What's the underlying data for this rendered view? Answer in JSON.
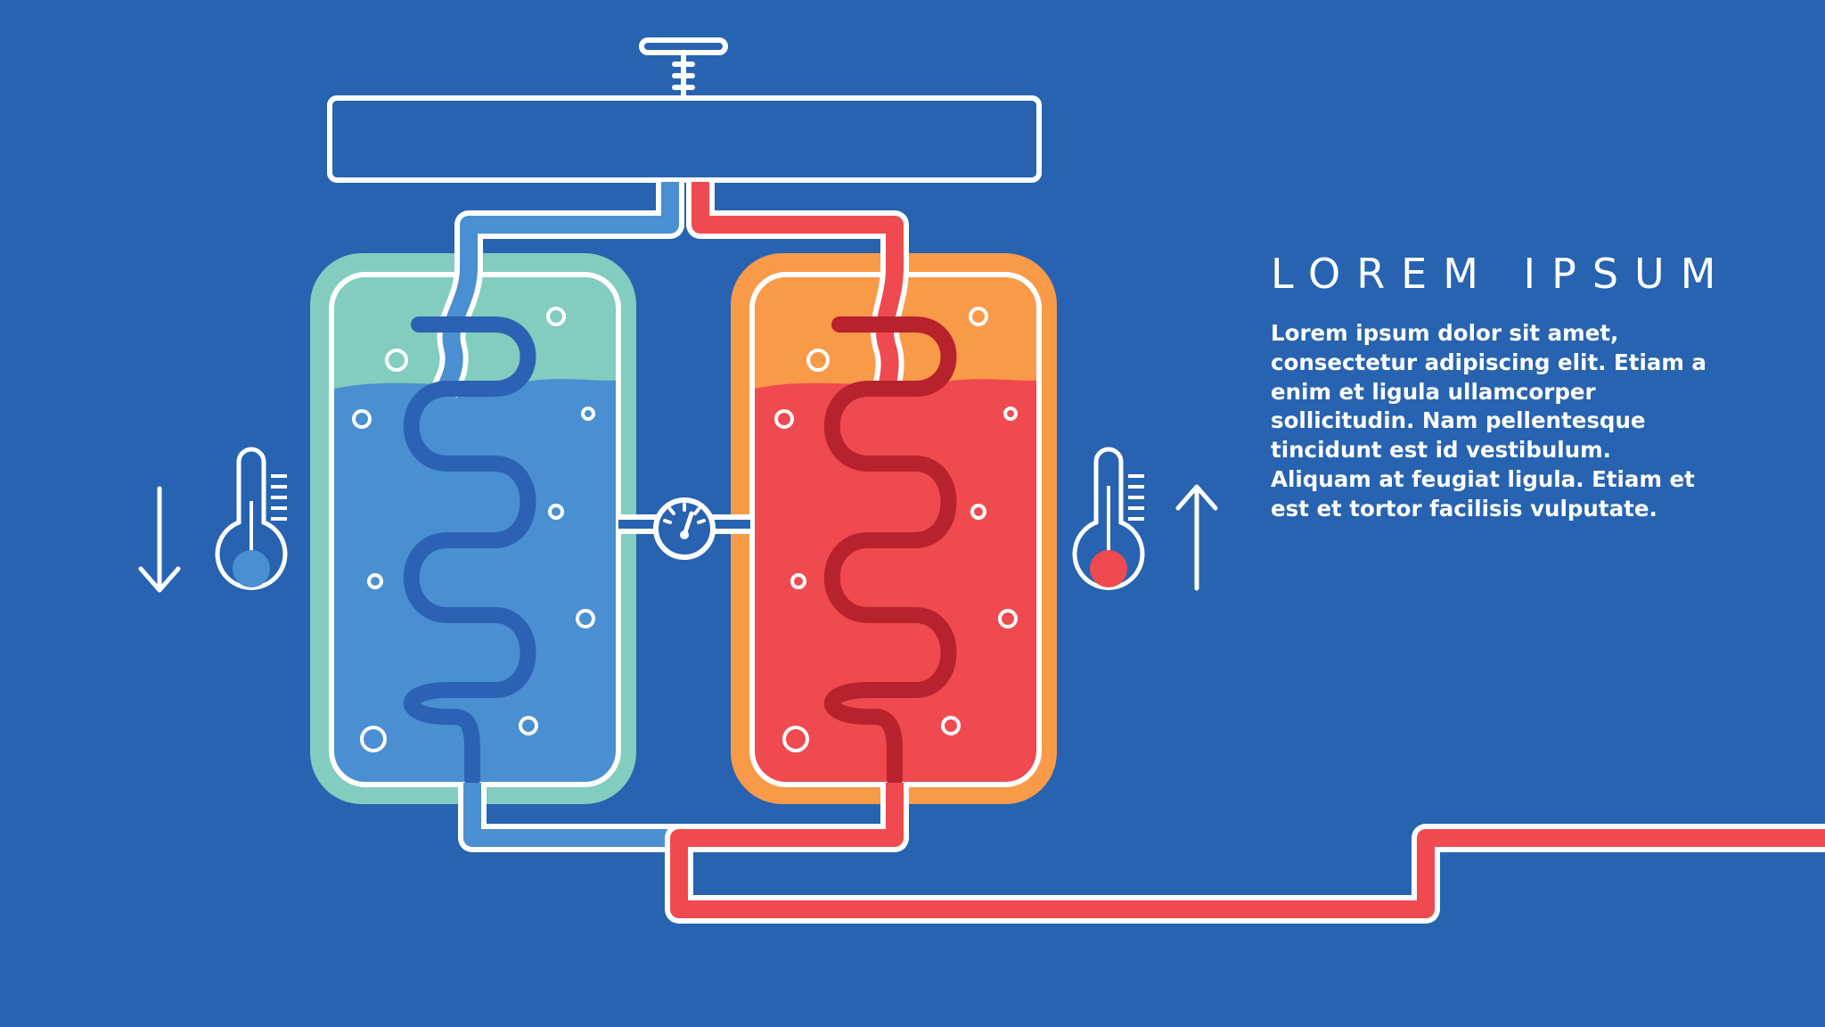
{
  "colors": {
    "background": "#2763b0",
    "outline": "#ffffff",
    "cold_tank_rim": "#82cdbf",
    "cold_liquid": "#4a8fd2",
    "cold_coil": "#2b62b3",
    "cold_pipe": "#4a8fd2",
    "hot_tank_rim": "#f99a49",
    "hot_liquid": "#ef4a4f",
    "hot_coil": "#b8222c",
    "hot_pipe": "#ef4a4f"
  },
  "icons": {
    "valve": "valve-icon",
    "gauge": "pressure-gauge-icon",
    "cold_thermometer": "thermometer-low-icon",
    "hot_thermometer": "thermometer-high-icon",
    "down_arrow": "arrow-down-icon",
    "up_arrow": "arrow-up-icon"
  },
  "text_panel": {
    "heading": "LOREM IPSUM",
    "body": "Lorem ipsum dolor sit amet, consectetur adipiscing elit. Etiam a enim et ligula ullamcorper sollicitudin. Nam pellentesque tincidunt est id vestibulum. Aliquam at feugiat ligula. Etiam et est et tortor facilisis vulputate."
  }
}
